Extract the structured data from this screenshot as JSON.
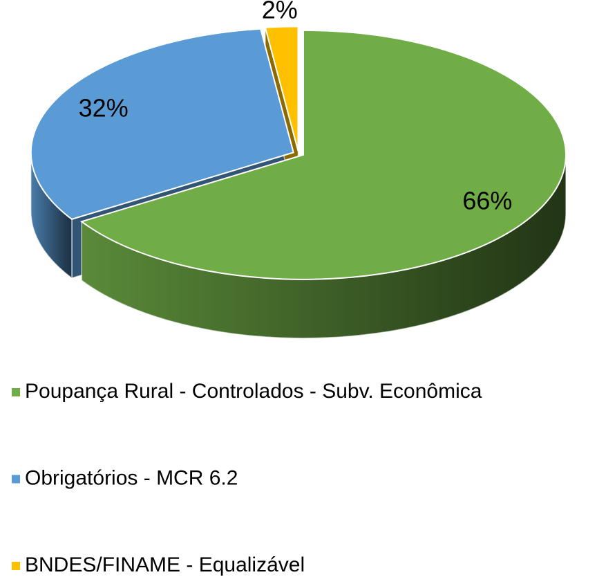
{
  "chart_data": {
    "type": "pie3d",
    "categories": [
      "Poupança Rural - Controlados - Subv. Econômica",
      "Obrigatórios - MCR 6.2",
      "BNDES/FINAME - Equalizável"
    ],
    "values": [
      66,
      32,
      2
    ],
    "value_labels": [
      "66%",
      "32%",
      "2%"
    ],
    "colors": [
      "#70ad47",
      "#5b9bd5",
      "#ffc000"
    ],
    "legend": "bottom-left"
  }
}
